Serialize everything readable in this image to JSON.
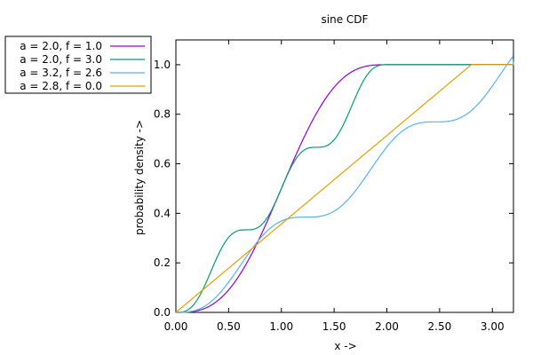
{
  "chart_data": {
    "type": "line",
    "title": "sine CDF",
    "xlabel": "x ->",
    "ylabel": "probability density ->",
    "xlim": [
      0,
      3.2
    ],
    "ylim": [
      0,
      1.1
    ],
    "x_ticks": [
      "0.00",
      "0.50",
      "1.00",
      "1.50",
      "2.00",
      "2.50",
      "3.00"
    ],
    "y_ticks": [
      "0.0",
      "0.2",
      "0.4",
      "0.6",
      "0.8",
      "1.0"
    ],
    "grid": false,
    "legend_position": "outside-top-left",
    "series": [
      {
        "name": "a = 2.0, f = 1.0",
        "a": 2.0,
        "f": 1.0,
        "color": "#9400d3"
      },
      {
        "name": "a = 2.0, f = 3.0",
        "a": 2.0,
        "f": 3.0,
        "color": "#009e73"
      },
      {
        "name": "a = 3.2, f = 2.6",
        "a": 3.2,
        "f": 2.6,
        "color": "#56b4e9"
      },
      {
        "name": "a = 2.8, f = 0.0",
        "a": 2.8,
        "f": 0.0,
        "color": "#e69f00"
      }
    ]
  }
}
